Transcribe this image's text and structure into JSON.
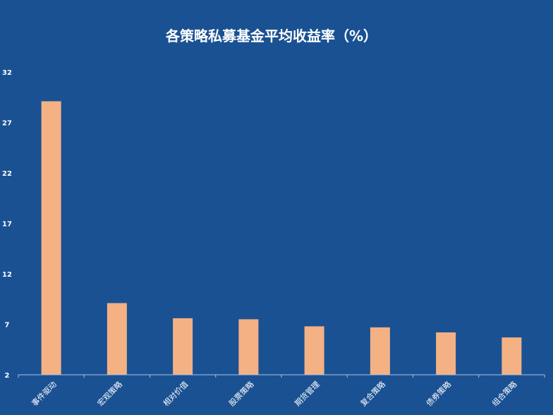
{
  "chart_data": {
    "type": "bar",
    "title": "各策略私募基金平均收益率（%）",
    "xlabel": "",
    "ylabel": "",
    "categories": [
      "事件驱动",
      "宏观策略",
      "相对价值",
      "股票策略",
      "期货管理",
      "复合策略",
      "债券策略",
      "组合策略"
    ],
    "values": [
      29.1,
      9.1,
      7.6,
      7.5,
      6.8,
      6.7,
      6.2,
      5.7
    ],
    "yticks": [
      2,
      7,
      12,
      17,
      22,
      27,
      32
    ],
    "ylim": [
      2,
      32
    ],
    "grid": false,
    "colors": {
      "background": "#1a5193",
      "bar": "#f4b183",
      "axis": "#a9c4e6",
      "text": "#ffffff"
    }
  }
}
